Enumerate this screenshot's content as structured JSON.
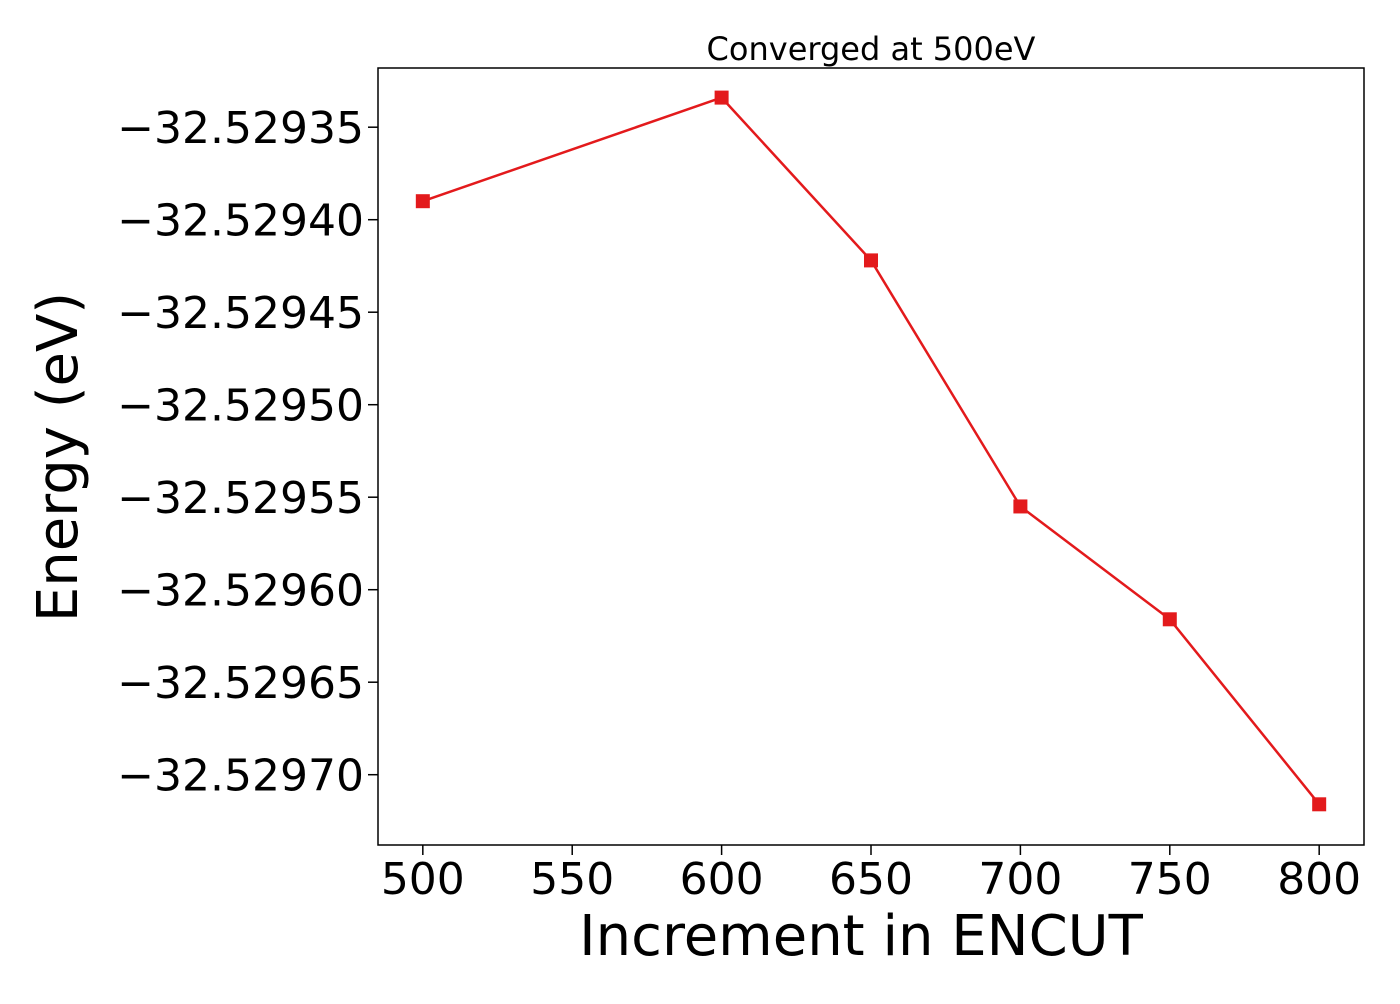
{
  "chart_data": {
    "type": "line",
    "title": "Converged at 500eV",
    "xlabel": "Increment in ENCUT",
    "ylabel": "Energy (eV)",
    "x": [
      500,
      600,
      650,
      700,
      750,
      800
    ],
    "series": [
      {
        "values": [
          -32.52939,
          -32.529334,
          -32.529422,
          -32.529555,
          -32.529616,
          -32.529716
        ],
        "color": "#e31a1c",
        "marker": "square"
      }
    ],
    "xlim": [
      485,
      815
    ],
    "ylim": [
      -32.529738,
      -32.529318
    ],
    "xticks": [
      500,
      550,
      600,
      650,
      700,
      750,
      800
    ],
    "xtick_labels": [
      "500",
      "550",
      "600",
      "650",
      "700",
      "750",
      "800"
    ],
    "yticks": [
      -32.52935,
      -32.5294,
      -32.52945,
      -32.5295,
      -32.52955,
      -32.5296,
      -32.52965,
      -32.5297
    ],
    "ytick_labels": [
      "−32.52935",
      "−32.52940",
      "−32.52945",
      "−32.52950",
      "−32.52955",
      "−32.52960",
      "−32.52965",
      "−32.52970"
    ],
    "grid": false,
    "legend": "none"
  }
}
